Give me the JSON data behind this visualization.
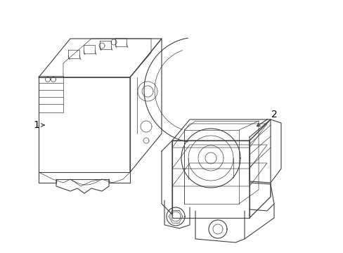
{
  "background_color": "#ffffff",
  "line_color": "#404040",
  "label_color": "#000000",
  "figsize": [
    4.89,
    3.6
  ],
  "dpi": 100,
  "component1_label": "1",
  "component2_label": "2"
}
